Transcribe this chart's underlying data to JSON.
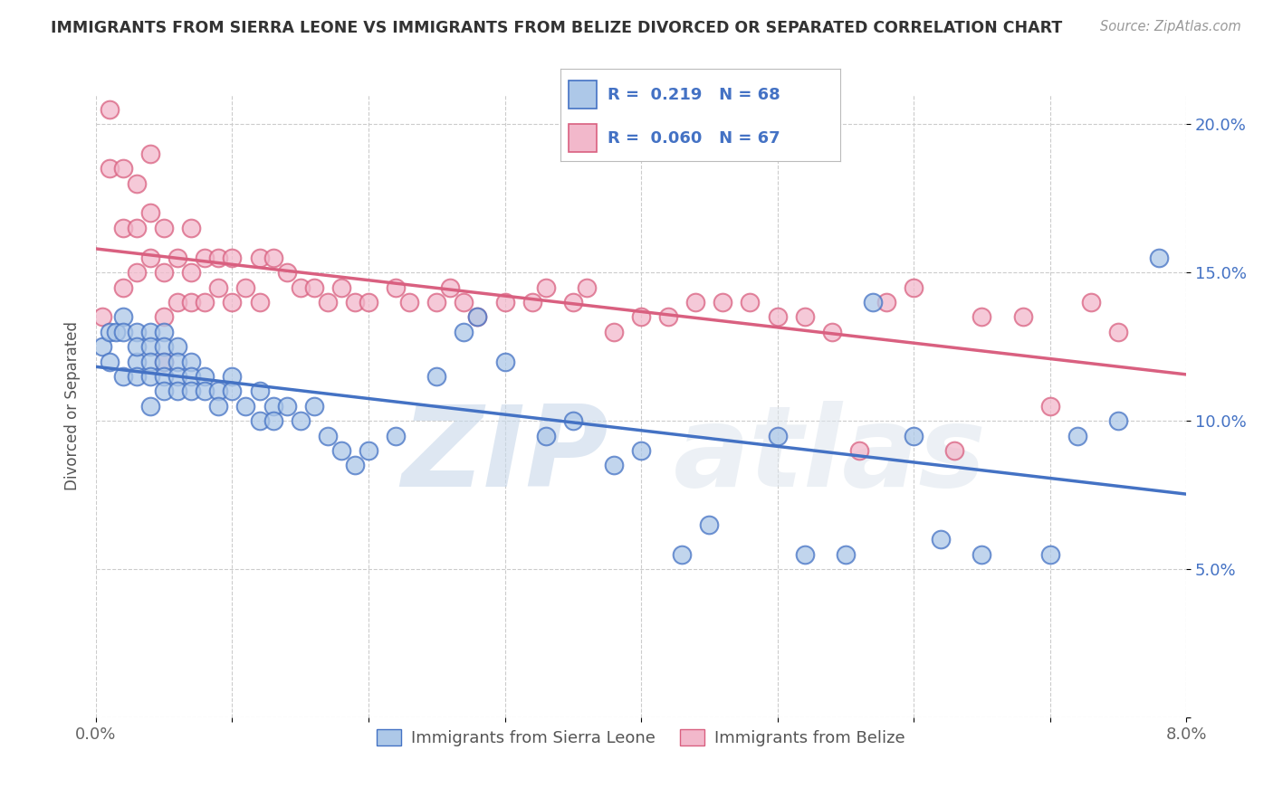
{
  "title": "IMMIGRANTS FROM SIERRA LEONE VS IMMIGRANTS FROM BELIZE DIVORCED OR SEPARATED CORRELATION CHART",
  "source_text": "Source: ZipAtlas.com",
  "ylabel": "Divorced or Separated",
  "xlim": [
    0.0,
    0.08
  ],
  "ylim": [
    0.0,
    0.21
  ],
  "xticks": [
    0.0,
    0.01,
    0.02,
    0.03,
    0.04,
    0.05,
    0.06,
    0.07,
    0.08
  ],
  "xticklabels": [
    "0.0%",
    "",
    "",
    "",
    "",
    "",
    "",
    "",
    "8.0%"
  ],
  "yticks": [
    0.0,
    0.05,
    0.1,
    0.15,
    0.2
  ],
  "yticklabels": [
    "",
    "5.0%",
    "10.0%",
    "15.0%",
    "20.0%"
  ],
  "sierra_leone_color": "#adc8e8",
  "belize_color": "#f2b8cb",
  "sierra_leone_line_color": "#4472c4",
  "belize_line_color": "#d96080",
  "r_sierra": 0.219,
  "n_sierra": 68,
  "r_belize": 0.06,
  "n_belize": 67,
  "legend_label_sierra": "Immigrants from Sierra Leone",
  "legend_label_belize": "Immigrants from Belize",
  "background_color": "#ffffff",
  "grid_color": "#cccccc",
  "title_color": "#333333",
  "watermark_zip": "ZIP",
  "watermark_atlas": "atlas",
  "sierra_leone_x": [
    0.0005,
    0.001,
    0.001,
    0.0015,
    0.002,
    0.002,
    0.002,
    0.003,
    0.003,
    0.003,
    0.003,
    0.004,
    0.004,
    0.004,
    0.004,
    0.004,
    0.005,
    0.005,
    0.005,
    0.005,
    0.005,
    0.006,
    0.006,
    0.006,
    0.006,
    0.007,
    0.007,
    0.007,
    0.008,
    0.008,
    0.009,
    0.009,
    0.01,
    0.01,
    0.011,
    0.012,
    0.012,
    0.013,
    0.013,
    0.014,
    0.015,
    0.016,
    0.017,
    0.018,
    0.019,
    0.02,
    0.022,
    0.025,
    0.027,
    0.028,
    0.03,
    0.033,
    0.035,
    0.038,
    0.04,
    0.043,
    0.045,
    0.05,
    0.052,
    0.055,
    0.057,
    0.06,
    0.062,
    0.065,
    0.07,
    0.072,
    0.075,
    0.078
  ],
  "sierra_leone_y": [
    0.125,
    0.13,
    0.12,
    0.13,
    0.115,
    0.135,
    0.13,
    0.13,
    0.12,
    0.125,
    0.115,
    0.13,
    0.125,
    0.12,
    0.115,
    0.105,
    0.13,
    0.125,
    0.12,
    0.115,
    0.11,
    0.125,
    0.12,
    0.115,
    0.11,
    0.12,
    0.115,
    0.11,
    0.115,
    0.11,
    0.11,
    0.105,
    0.115,
    0.11,
    0.105,
    0.11,
    0.1,
    0.105,
    0.1,
    0.105,
    0.1,
    0.105,
    0.095,
    0.09,
    0.085,
    0.09,
    0.095,
    0.115,
    0.13,
    0.135,
    0.12,
    0.095,
    0.1,
    0.085,
    0.09,
    0.055,
    0.065,
    0.095,
    0.055,
    0.055,
    0.14,
    0.095,
    0.06,
    0.055,
    0.055,
    0.095,
    0.1,
    0.155
  ],
  "belize_x": [
    0.0005,
    0.001,
    0.001,
    0.002,
    0.002,
    0.002,
    0.003,
    0.003,
    0.003,
    0.004,
    0.004,
    0.004,
    0.005,
    0.005,
    0.005,
    0.005,
    0.006,
    0.006,
    0.007,
    0.007,
    0.007,
    0.008,
    0.008,
    0.009,
    0.009,
    0.01,
    0.01,
    0.011,
    0.012,
    0.012,
    0.013,
    0.014,
    0.015,
    0.016,
    0.017,
    0.018,
    0.019,
    0.02,
    0.022,
    0.023,
    0.025,
    0.026,
    0.027,
    0.028,
    0.03,
    0.032,
    0.033,
    0.035,
    0.036,
    0.038,
    0.04,
    0.042,
    0.044,
    0.046,
    0.048,
    0.05,
    0.052,
    0.054,
    0.056,
    0.058,
    0.06,
    0.063,
    0.065,
    0.068,
    0.07,
    0.073,
    0.075
  ],
  "belize_y": [
    0.135,
    0.185,
    0.205,
    0.185,
    0.165,
    0.145,
    0.18,
    0.165,
    0.15,
    0.19,
    0.17,
    0.155,
    0.165,
    0.15,
    0.135,
    0.12,
    0.155,
    0.14,
    0.165,
    0.15,
    0.14,
    0.155,
    0.14,
    0.155,
    0.145,
    0.155,
    0.14,
    0.145,
    0.155,
    0.14,
    0.155,
    0.15,
    0.145,
    0.145,
    0.14,
    0.145,
    0.14,
    0.14,
    0.145,
    0.14,
    0.14,
    0.145,
    0.14,
    0.135,
    0.14,
    0.14,
    0.145,
    0.14,
    0.145,
    0.13,
    0.135,
    0.135,
    0.14,
    0.14,
    0.14,
    0.135,
    0.135,
    0.13,
    0.09,
    0.14,
    0.145,
    0.09,
    0.135,
    0.135,
    0.105,
    0.14,
    0.13
  ]
}
